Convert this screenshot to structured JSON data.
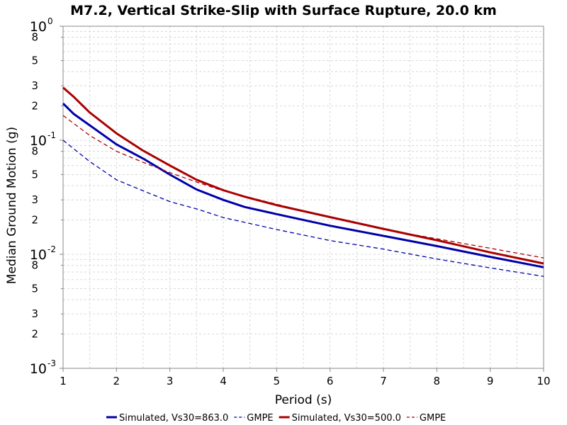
{
  "chart_data": {
    "type": "line",
    "title": "M7.2, Vertical Strike-Slip with Surface Rupture, 20.0 km",
    "xlabel": "Period (s)",
    "ylabel": "Median Ground Motion (g)",
    "xlim": [
      1,
      10
    ],
    "ylim": [
      0.001,
      1
    ],
    "y_scale": "log",
    "grid": true,
    "legend_position": "bottom",
    "x_ticks": [
      "1",
      "2",
      "3",
      "4",
      "5",
      "6",
      "7",
      "8",
      "9",
      "10"
    ],
    "y_major_ticks": [
      {
        "value": 1,
        "base": "10",
        "exp": "0"
      },
      {
        "value": 0.1,
        "base": "10",
        "exp": "-1"
      },
      {
        "value": 0.01,
        "base": "10",
        "exp": "-2"
      },
      {
        "value": 0.001,
        "base": "10",
        "exp": "-3"
      }
    ],
    "y_minor_labels": [
      "8",
      "5",
      "3",
      "2"
    ],
    "series": [
      {
        "name": "Simulated, Vs30=863.0",
        "color": "#0000aa",
        "style": "solid",
        "x": [
          1.0,
          1.2,
          1.5,
          2.0,
          2.5,
          3.0,
          3.5,
          4.0,
          4.4,
          5.0,
          6.0,
          7.0,
          8.0,
          9.0,
          10.0
        ],
        "y": [
          0.21,
          0.17,
          0.135,
          0.092,
          0.069,
          0.05,
          0.037,
          0.03,
          0.026,
          0.0225,
          0.0178,
          0.0145,
          0.0118,
          0.0095,
          0.0077
        ]
      },
      {
        "name": "GMPE",
        "color": "#0000aa",
        "style": "dashed",
        "x": [
          1.0,
          1.5,
          2.0,
          2.5,
          3.0,
          3.5,
          4.0,
          5.0,
          6.0,
          7.0,
          8.0,
          9.0,
          10.0
        ],
        "y": [
          0.1,
          0.065,
          0.045,
          0.036,
          0.029,
          0.025,
          0.021,
          0.0165,
          0.0132,
          0.0111,
          0.0091,
          0.0076,
          0.0064
        ]
      },
      {
        "name": "Simulated, Vs30=500.0",
        "color": "#aa0000",
        "style": "solid",
        "x": [
          1.0,
          1.2,
          1.5,
          2.0,
          2.5,
          3.0,
          3.5,
          4.0,
          4.4,
          5.0,
          6.0,
          7.0,
          8.0,
          9.0,
          10.0
        ],
        "y": [
          0.29,
          0.24,
          0.175,
          0.115,
          0.081,
          0.06,
          0.045,
          0.0365,
          0.032,
          0.027,
          0.0212,
          0.0167,
          0.0133,
          0.0104,
          0.0083
        ]
      },
      {
        "name": "GMPE",
        "color": "#aa0000",
        "style": "dashed",
        "x": [
          1.0,
          1.5,
          2.0,
          2.5,
          3.0,
          3.5,
          4.0,
          5.0,
          6.0,
          7.0,
          8.0,
          9.0,
          10.0
        ],
        "y": [
          0.165,
          0.11,
          0.08,
          0.064,
          0.052,
          0.043,
          0.036,
          0.0275,
          0.021,
          0.0165,
          0.0137,
          0.0113,
          0.0093
        ]
      }
    ]
  }
}
